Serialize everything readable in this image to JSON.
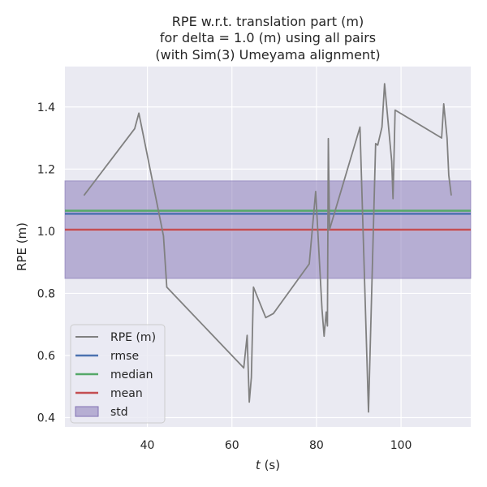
{
  "chart_data": {
    "type": "line",
    "title_lines": [
      "RPE w.r.t. translation part (m)",
      "for delta = 1.0 (m) using all pairs",
      "(with Sim(3) Umeyama alignment)"
    ],
    "xlabel_italic": "t",
    "xlabel_rest": " (s)",
    "ylabel": "RPE (m)",
    "xlim": [
      20.5,
      116.5
    ],
    "ylim": [
      0.37,
      1.53
    ],
    "x_ticks": [
      40,
      60,
      80,
      100
    ],
    "y_ticks": [
      0.4,
      0.6,
      0.8,
      1.0,
      1.2,
      1.4
    ],
    "x_tick_labels": [
      "40",
      "60",
      "80",
      "100"
    ],
    "y_tick_labels": [
      "0.4",
      "0.6",
      "0.8",
      "1.0",
      "1.2",
      "1.4"
    ],
    "grid": true,
    "legend_position": "lower-left",
    "series": [
      {
        "name": "RPE (m)",
        "color": "#808080",
        "x": [
          25.0,
          37.0,
          38.0,
          43.8,
          44.6,
          62.8,
          63.6,
          64.1,
          64.6,
          65.1,
          68.0,
          69.8,
          78.3,
          79.8,
          81.3,
          81.8,
          82.3,
          82.6,
          82.8,
          83.1,
          90.3,
          92.3,
          94.0,
          94.5,
          95.5,
          96.1,
          97.8,
          98.1,
          98.6,
          109.6,
          110.1,
          110.9,
          111.3,
          111.9
        ],
        "y": [
          1.115,
          1.33,
          1.38,
          0.985,
          0.82,
          0.56,
          0.665,
          0.45,
          0.53,
          0.82,
          0.722,
          0.735,
          0.895,
          1.128,
          0.75,
          0.662,
          0.74,
          0.695,
          1.298,
          1.005,
          1.335,
          0.418,
          1.282,
          1.277,
          1.335,
          1.475,
          1.225,
          1.105,
          1.39,
          1.3,
          1.41,
          1.3,
          1.18,
          1.115
        ]
      }
    ],
    "stats": {
      "rmse": {
        "name": "rmse",
        "value": 1.056,
        "color": "#4c72b0"
      },
      "median": {
        "name": "median",
        "value": 1.066,
        "color": "#55a868"
      },
      "mean": {
        "name": "mean",
        "value": 1.005,
        "color": "#c44e52"
      },
      "std": {
        "name": "std",
        "lower": 0.848,
        "upper": 1.162,
        "color": "#8172b3"
      }
    }
  }
}
